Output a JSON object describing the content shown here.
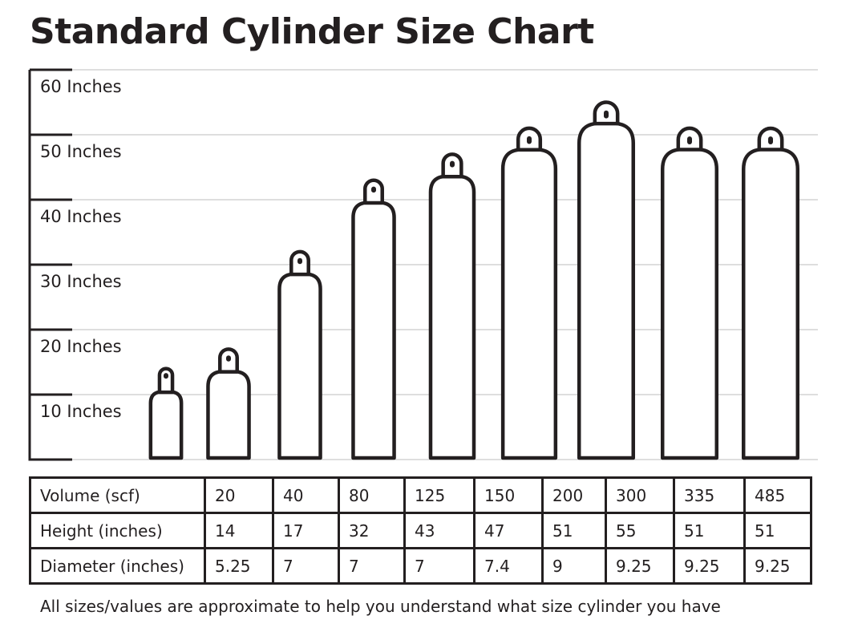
{
  "chart_data": {
    "type": "bar",
    "title": "Standard Cylinder Size Chart",
    "ylabel": "",
    "yticks": [
      "10 Inches",
      "20 Inches",
      "30 Inches",
      "40 Inches",
      "50 Inches",
      "60 Inches"
    ],
    "ylim": [
      0,
      60
    ],
    "grid": true,
    "categories": [
      "20",
      "40",
      "80",
      "125",
      "150",
      "200",
      "300",
      "335",
      "485"
    ],
    "series": [
      {
        "values": [
          14,
          17,
          32,
          43,
          47,
          51,
          55,
          51,
          51
        ]
      }
    ],
    "diameters": [
      5.25,
      7,
      7,
      7,
      7.4,
      9,
      9.25,
      9.25,
      9.25
    ]
  },
  "table": {
    "rows": [
      {
        "label": "Volume (scf)",
        "cells": [
          "20",
          "40",
          "80",
          "125",
          "150",
          "200",
          "300",
          "335",
          "485"
        ]
      },
      {
        "label": "Height (inches)",
        "cells": [
          "14",
          "17",
          "32",
          "43",
          "47",
          "51",
          "55",
          "51",
          "51"
        ]
      },
      {
        "label": "Diameter (inches)",
        "cells": [
          "5.25",
          "7",
          "7",
          "7",
          "7.4",
          "9",
          "9.25",
          "9.25",
          "9.25"
        ]
      }
    ]
  },
  "footnote": "All sizes/values are approximate to help you understand what size cylinder you have",
  "colors": {
    "ink": "#231f20",
    "grid": "#bcbcbc",
    "background": "#ffffff"
  }
}
